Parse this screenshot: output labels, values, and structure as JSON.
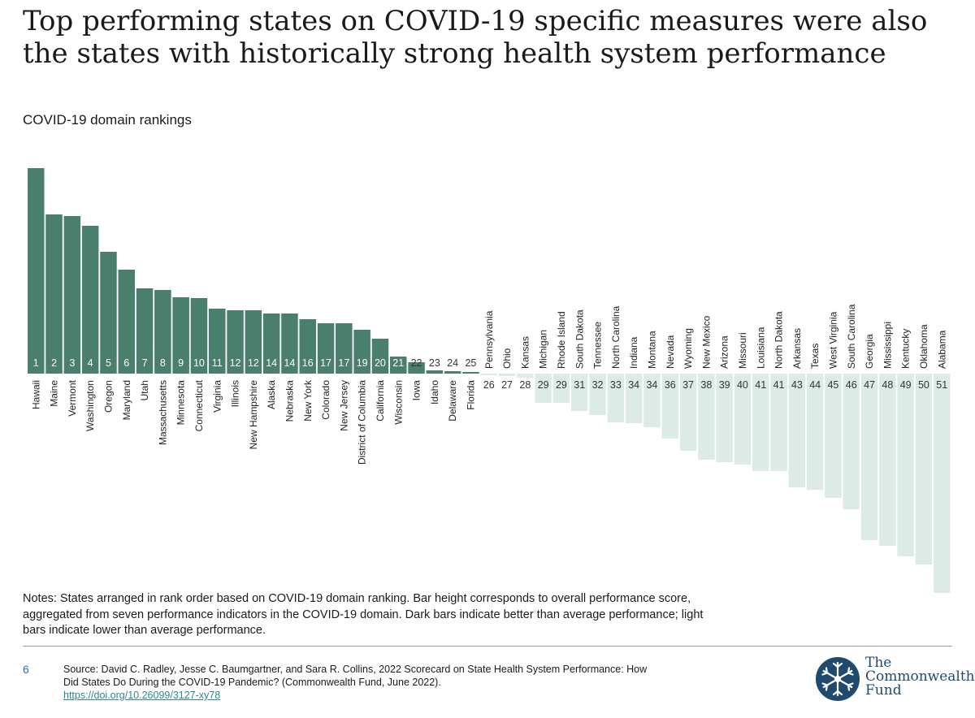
{
  "title": "Top performing states on COVID-19 specific measures were also the states with historically strong health system performance",
  "subtitle": "COVID-19 domain rankings",
  "colors": {
    "dark_bar": "#4a7f6e",
    "light_bar": "#dcebe6",
    "rank_text_dark": "#ffffff",
    "rank_text_light": "#333333",
    "link": "#2c8a8a",
    "logo_blue": "#1f4a6e"
  },
  "chart_data": {
    "type": "bar",
    "baseline": "center; upper bars dark (better than average), lower bars light (lower than average)",
    "categories": [
      "Hawaii",
      "Maine",
      "Vermont",
      "Washington",
      "Oregon",
      "Maryland",
      "Utah",
      "Massachusetts",
      "Minnesota",
      "Connecticut",
      "Virginia",
      "Illinois",
      "New Hampshire",
      "Alaska",
      "Nebraska",
      "New York",
      "Colorado",
      "New Jersey",
      "District of Columbia",
      "California",
      "Wisconsin",
      "Iowa",
      "Idaho",
      "Delaware",
      "Florida",
      "Pennsylvania",
      "Ohio",
      "Kansas",
      "Michigan",
      "Rhode Island",
      "South Dakota",
      "Tennessee",
      "North Carolina",
      "Indiana",
      "Montana",
      "Nevada",
      "Wyoming",
      "New Mexico",
      "Arizona",
      "Missouri",
      "Louisiana",
      "North Dakota",
      "Arkansas",
      "Texas",
      "West Virginia",
      "South Carolina",
      "Georgia",
      "Mississippi",
      "Kentucky",
      "Oklahoma",
      "Alabama"
    ],
    "ranks": [
      "1",
      "2",
      "3",
      "4",
      "5",
      "6",
      "7",
      "8",
      "9",
      "10",
      "11",
      "12",
      "12",
      "14",
      "14",
      "16",
      "17",
      "17",
      "19",
      "20",
      "21",
      "22",
      "23",
      "24",
      "25",
      "26",
      "27",
      "28",
      "29",
      "29",
      "31",
      "32",
      "33",
      "34",
      "34",
      "36",
      "37",
      "38",
      "39",
      "40",
      "41",
      "41",
      "43",
      "44",
      "45",
      "46",
      "47",
      "48",
      "49",
      "50",
      "51"
    ],
    "values": [
      2.53,
      1.96,
      1.94,
      1.82,
      1.5,
      1.28,
      1.05,
      1.03,
      0.94,
      0.93,
      0.8,
      0.78,
      0.78,
      0.74,
      0.74,
      0.67,
      0.62,
      0.62,
      0.54,
      0.43,
      0.21,
      0.14,
      0.04,
      0.03,
      0.01,
      -0.02,
      -0.03,
      -0.05,
      -0.36,
      -0.36,
      -0.46,
      -0.51,
      -0.6,
      -0.61,
      -0.66,
      -0.8,
      -0.95,
      -1.06,
      -1.09,
      -1.12,
      -1.2,
      -1.2,
      -1.4,
      -1.43,
      -1.53,
      -1.67,
      -2.05,
      -2.12,
      -2.25,
      -2.35,
      -3.36
    ],
    "ylabel": "",
    "xlabel": ""
  },
  "notes": "Notes: States arranged in rank order based on COVID-19 domain ranking. Bar height corresponds to overall performance score, aggregated from seven performance indicators in the COVID-19 domain. Dark bars indicate better than average performance; light bars indicate lower than average performance.",
  "footer": {
    "page_number": "6",
    "source": "Source: David C. Radley, Jesse C. Baumgartner, and Sara R. Collins, 2022 Scorecard on State Health System Performance: How Did States Do During the COVID-19 Pandemic? (Commonwealth Fund, June 2022).",
    "link": "https://doi.org/10.26099/3127-xy78"
  },
  "logo": {
    "line1": "The",
    "line2": "Commonwealth",
    "line3": "Fund",
    "icon": "snowflake-emblem-icon"
  }
}
